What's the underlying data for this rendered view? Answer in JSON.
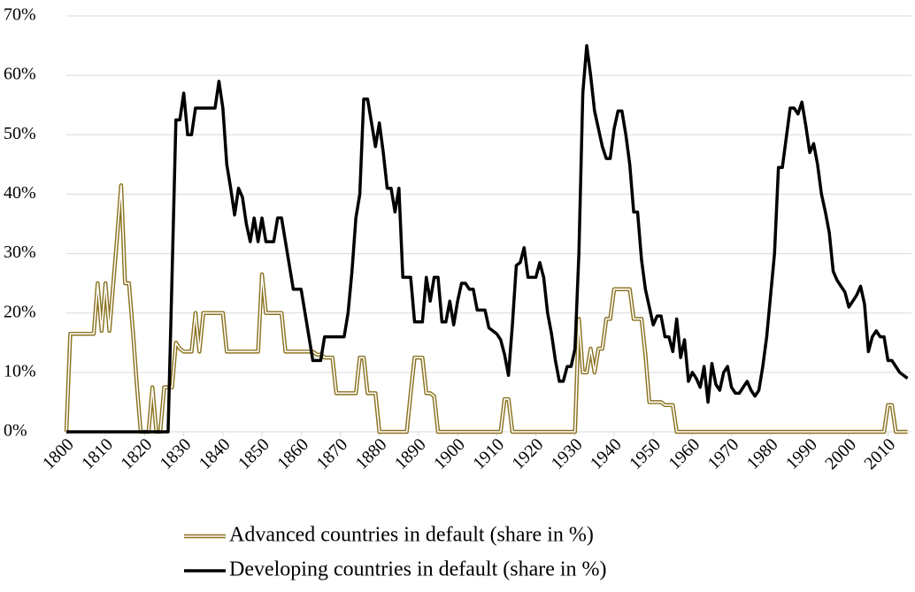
{
  "chart_data": {
    "type": "line",
    "x": [
      1800,
      1801,
      1802,
      1803,
      1804,
      1805,
      1806,
      1807,
      1808,
      1809,
      1810,
      1811,
      1812,
      1813,
      1814,
      1815,
      1816,
      1817,
      1818,
      1819,
      1820,
      1821,
      1822,
      1823,
      1824,
      1825,
      1826,
      1827,
      1828,
      1829,
      1830,
      1831,
      1832,
      1833,
      1834,
      1835,
      1836,
      1837,
      1838,
      1839,
      1840,
      1841,
      1842,
      1843,
      1844,
      1845,
      1846,
      1847,
      1848,
      1849,
      1850,
      1851,
      1852,
      1853,
      1854,
      1855,
      1856,
      1857,
      1858,
      1859,
      1860,
      1861,
      1862,
      1863,
      1864,
      1865,
      1866,
      1867,
      1868,
      1869,
      1870,
      1871,
      1872,
      1873,
      1874,
      1875,
      1876,
      1877,
      1878,
      1879,
      1880,
      1881,
      1882,
      1883,
      1884,
      1885,
      1886,
      1887,
      1888,
      1889,
      1890,
      1891,
      1892,
      1893,
      1894,
      1895,
      1896,
      1897,
      1898,
      1899,
      1900,
      1901,
      1902,
      1903,
      1904,
      1905,
      1906,
      1907,
      1908,
      1909,
      1910,
      1911,
      1912,
      1913,
      1914,
      1915,
      1916,
      1917,
      1918,
      1919,
      1920,
      1921,
      1922,
      1923,
      1924,
      1925,
      1926,
      1927,
      1928,
      1929,
      1930,
      1931,
      1932,
      1933,
      1934,
      1935,
      1936,
      1937,
      1938,
      1939,
      1940,
      1941,
      1942,
      1943,
      1944,
      1945,
      1946,
      1947,
      1948,
      1949,
      1950,
      1951,
      1952,
      1953,
      1954,
      1955,
      1956,
      1957,
      1958,
      1959,
      1960,
      1961,
      1962,
      1963,
      1964,
      1965,
      1966,
      1967,
      1968,
      1969,
      1970,
      1971,
      1972,
      1973,
      1974,
      1975,
      1976,
      1977,
      1978,
      1979,
      1980,
      1981,
      1982,
      1983,
      1984,
      1985,
      1986,
      1987,
      1988,
      1989,
      1990,
      1991,
      1992,
      1993,
      1994,
      1995,
      1996,
      1997,
      1998,
      1999,
      2000,
      2001,
      2002,
      2003,
      2004,
      2005,
      2006,
      2007,
      2008,
      2009,
      2010,
      2011,
      2012,
      2013,
      2014,
      2015
    ],
    "series": [
      {
        "name": "Advanced countries in default (share in %)",
        "color": "#8b7320",
        "style": "double",
        "values": [
          0,
          16.5,
          16.5,
          16.5,
          16.5,
          16.5,
          16.5,
          16.5,
          25,
          17,
          25,
          17,
          25,
          33,
          41.5,
          25,
          25,
          17,
          8,
          0,
          0,
          0,
          7.5,
          0,
          0,
          7.5,
          7.5,
          7.5,
          15,
          14,
          13.5,
          13.5,
          13.5,
          20,
          13.5,
          20,
          20,
          20,
          20,
          20,
          20,
          13.5,
          13.5,
          13.5,
          13.5,
          13.5,
          13.5,
          13.5,
          13.5,
          13.5,
          26.5,
          20,
          20,
          20,
          20,
          20,
          13.5,
          13.5,
          13.5,
          13.5,
          13.5,
          13.5,
          13.5,
          13.5,
          13,
          13,
          12.5,
          12.5,
          12.5,
          6.5,
          6.5,
          6.5,
          6.5,
          6.5,
          6.5,
          12.5,
          12.5,
          6.5,
          6.5,
          6.5,
          0,
          0,
          0,
          0,
          0,
          0,
          0,
          0,
          6.5,
          12.5,
          12.5,
          12.5,
          6.5,
          6.5,
          6,
          0,
          0,
          0,
          0,
          0,
          0,
          0,
          0,
          0,
          0,
          0,
          0,
          0,
          0,
          0,
          0,
          0,
          5.5,
          5.5,
          0,
          0,
          0,
          0,
          0,
          0,
          0,
          0,
          0,
          0,
          0,
          0,
          0,
          0,
          0,
          0,
          0,
          19,
          10,
          10,
          14,
          10,
          14,
          14,
          19,
          19,
          24,
          24,
          24,
          24,
          24,
          19,
          19,
          19,
          13,
          5,
          5,
          5,
          5,
          4.5,
          4.5,
          4.5,
          0,
          0,
          0,
          0,
          0,
          0,
          0,
          0,
          0,
          0,
          0,
          0,
          0,
          0,
          0,
          0,
          0,
          0,
          0,
          0,
          0,
          0,
          0,
          0,
          0,
          0,
          0,
          0,
          0,
          0,
          0,
          0,
          0,
          0,
          0,
          0,
          0,
          0,
          0,
          0,
          0,
          0,
          0,
          0,
          0,
          0,
          0,
          0,
          0,
          0,
          0,
          0,
          0,
          0,
          4.5,
          4.5,
          0,
          0,
          0,
          0
        ]
      },
      {
        "name": "Developing countries in default (share in %)",
        "color": "#000000",
        "style": "solid",
        "values": [
          0,
          0,
          0,
          0,
          0,
          0,
          0,
          0,
          0,
          0,
          0,
          0,
          0,
          0,
          0,
          0,
          0,
          0,
          0,
          0,
          0,
          0,
          0,
          0,
          0,
          0,
          0,
          26,
          52.5,
          52.5,
          57,
          50,
          50,
          54.5,
          54.5,
          54.5,
          54.5,
          54.5,
          54.5,
          59,
          54.5,
          45,
          41,
          36.5,
          41,
          39.5,
          35,
          32,
          36,
          32,
          36,
          32,
          32,
          32,
          36,
          36,
          32,
          28,
          24,
          24,
          24,
          20,
          16,
          12,
          12,
          12,
          16,
          16,
          16,
          16,
          16,
          16,
          20,
          27,
          36,
          40,
          56,
          56,
          52,
          48,
          52,
          47,
          41,
          41,
          37,
          41,
          26,
          26,
          26,
          18.5,
          18.5,
          18.5,
          26,
          22,
          26,
          26,
          18.5,
          18.5,
          22,
          18,
          22,
          25,
          25,
          24,
          24,
          20.5,
          20.5,
          20.5,
          17.5,
          17,
          16.5,
          15.5,
          13,
          9.5,
          18,
          28,
          28.5,
          31,
          26,
          26,
          26,
          28.5,
          26,
          20,
          16.5,
          12,
          8.5,
          8.5,
          11,
          11,
          14,
          30,
          57,
          65,
          60,
          54,
          51,
          48,
          46,
          46,
          51,
          54,
          54,
          50,
          45,
          37,
          37,
          29,
          24,
          21,
          18,
          19.5,
          19.5,
          16,
          16,
          13.5,
          19,
          12.5,
          15.5,
          8.5,
          10,
          9,
          7.5,
          11,
          5,
          11.5,
          8,
          7,
          10,
          11,
          7.5,
          6.5,
          6.5,
          7.5,
          8.5,
          7,
          6,
          7,
          11,
          16,
          23,
          30,
          44.5,
          44.5,
          49.5,
          54.5,
          54.5,
          53.5,
          55.5,
          51.5,
          47,
          48.5,
          45,
          40,
          37,
          33.5,
          27,
          25.5,
          24.5,
          23.5,
          21,
          22,
          23,
          24.5,
          21.5,
          13.5,
          16,
          17,
          16,
          16,
          12,
          12,
          11,
          10,
          9.5,
          9
        ]
      }
    ],
    "xlim": [
      1800,
      2016
    ],
    "xticks": [
      1800,
      1810,
      1820,
      1830,
      1840,
      1850,
      1860,
      1870,
      1880,
      1890,
      1900,
      1910,
      1920,
      1930,
      1940,
      1950,
      1960,
      1970,
      1980,
      1990,
      2000,
      2010
    ],
    "ylim": [
      0,
      70
    ],
    "yticks": [
      {
        "value": 0,
        "label": "0%"
      },
      {
        "value": 10,
        "label": "10%"
      },
      {
        "value": 20,
        "label": "20%"
      },
      {
        "value": 30,
        "label": "30%"
      },
      {
        "value": 40,
        "label": "40%"
      },
      {
        "value": 50,
        "label": "50%"
      },
      {
        "value": 60,
        "label": "60%"
      },
      {
        "value": 70,
        "label": "70%"
      }
    ],
    "grid": true,
    "legend": "bottom"
  }
}
